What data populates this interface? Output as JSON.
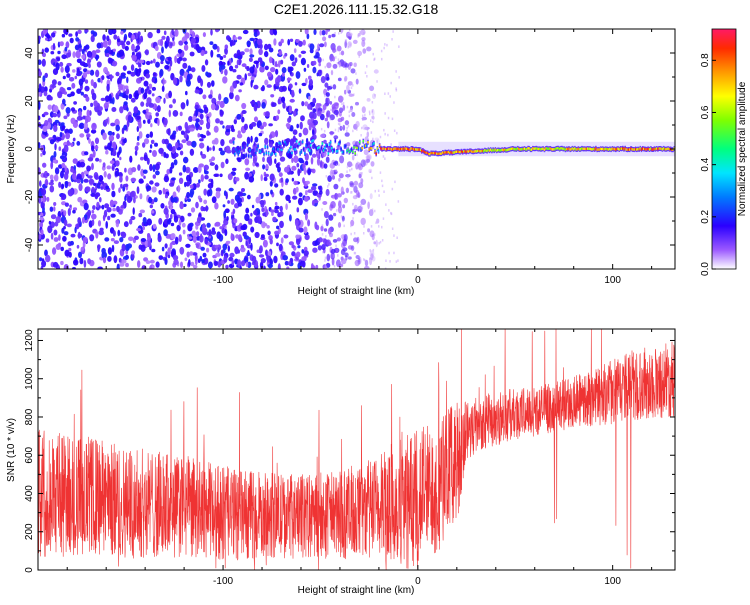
{
  "figure_title": "C2E1.2026.111.15.32.G18",
  "chart_data": [
    {
      "type": "heatmap",
      "xlabel": "Height of straight line (km)",
      "ylabel": "Frequency (Hz)",
      "xlim": [
        -195,
        132
      ],
      "ylim": [
        -50,
        50
      ],
      "x_ticks": [
        -100,
        0,
        100
      ],
      "x_tick_labels": [
        "-100",
        "0",
        "100"
      ],
      "y_ticks": [
        -40,
        -20,
        0,
        20,
        40
      ],
      "y_tick_labels": [
        "-40",
        "-20",
        "0",
        "20",
        "40"
      ],
      "colorbar": {
        "label": "Normalized spectral amplitude",
        "range": [
          0,
          0.92
        ],
        "ticks": [
          0.0,
          0.2,
          0.4,
          0.6,
          0.8
        ],
        "tick_labels": [
          "0.0",
          "0.2",
          "0.4",
          "0.6",
          "0.8"
        ]
      },
      "features": {
        "noise_region_x": [
          -195,
          -20
        ],
        "faint_noise_region_x": [
          -50,
          -10
        ],
        "signal_track": [
          {
            "x": -90,
            "y": 0,
            "amp": 0.3
          },
          {
            "x": -40,
            "y": 1,
            "amp": 0.45
          },
          {
            "x": -20,
            "y": 0,
            "amp": 0.9
          },
          {
            "x": 0,
            "y": 0,
            "amp": 0.9
          },
          {
            "x": 5,
            "y": -2,
            "amp": 0.92
          },
          {
            "x": 50,
            "y": 0,
            "amp": 0.75
          },
          {
            "x": 132,
            "y": 0,
            "amp": 0.9
          }
        ]
      }
    },
    {
      "type": "line",
      "series_name": "SNR",
      "xlabel": "Height of straight line (km)",
      "ylabel": "SNR (10 * v/v)",
      "xlim": [
        -195,
        132
      ],
      "ylim": [
        0,
        1260
      ],
      "x_ticks": [
        -100,
        0,
        100
      ],
      "x_tick_labels": [
        "-100",
        "0",
        "100"
      ],
      "y_ticks": [
        0,
        200,
        400,
        600,
        800,
        1000,
        1200
      ],
      "y_tick_labels": [
        "0",
        "200",
        "400",
        "600",
        "800",
        "1000",
        "1200"
      ],
      "envelope": {
        "x": [
          -195,
          -170,
          -150,
          -120,
          -90,
          -60,
          -40,
          -20,
          -10,
          0,
          10,
          20,
          25,
          30,
          50,
          70,
          90,
          110,
          132
        ],
        "lower": [
          60,
          80,
          60,
          60,
          50,
          60,
          60,
          40,
          30,
          20,
          80,
          250,
          550,
          620,
          680,
          720,
          750,
          780,
          800
        ],
        "upper": [
          750,
          700,
          650,
          600,
          520,
          500,
          520,
          600,
          700,
          750,
          800,
          900,
          900,
          920,
          950,
          980,
          1050,
          1150,
          1200
        ]
      },
      "line_color": "#ef3333"
    }
  ]
}
